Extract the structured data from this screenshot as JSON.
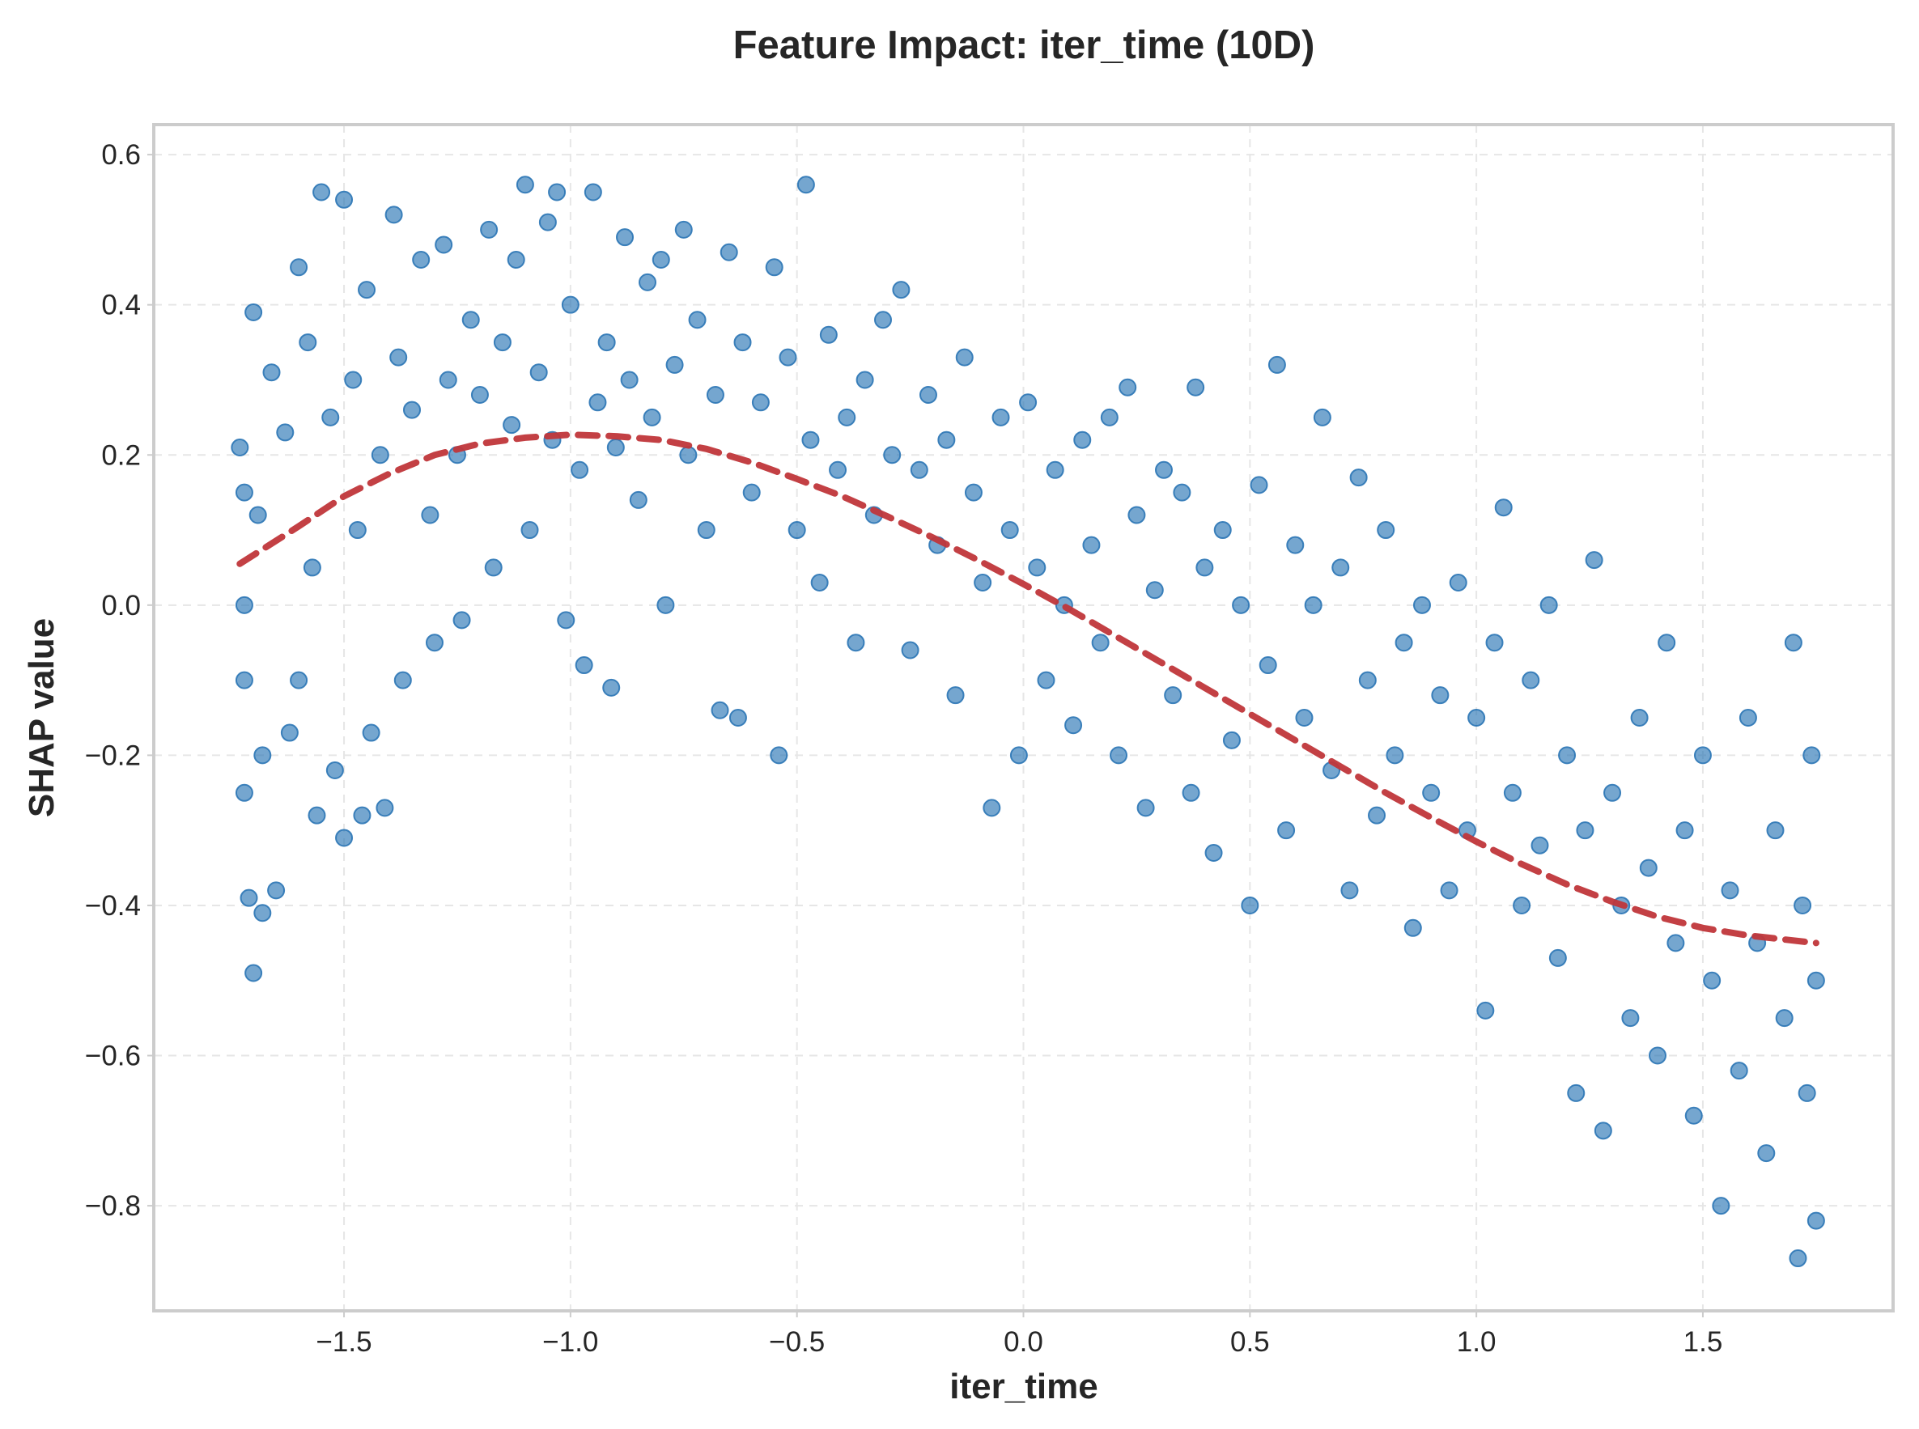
{
  "chart_data": {
    "type": "scatter",
    "title": "Feature Impact: iter_time (10D)",
    "xlabel": "iter_time",
    "ylabel": "SHAP value",
    "xlim": [
      -1.92,
      1.92
    ],
    "ylim": [
      -0.94,
      0.64
    ],
    "xticks": [
      -1.5,
      -1.0,
      -0.5,
      0.0,
      0.5,
      1.0,
      1.5
    ],
    "xtick_labels": [
      "−1.5",
      "−1.0",
      "−0.5",
      "0.0",
      "0.5",
      "1.0",
      "1.5"
    ],
    "yticks": [
      0.6,
      0.4,
      0.2,
      0.0,
      -0.2,
      -0.4,
      -0.6,
      -0.8
    ],
    "ytick_labels": [
      "0.6",
      "0.4",
      "0.2",
      "0.0",
      "−0.2",
      "−0.4",
      "−0.6",
      "−0.8"
    ],
    "grid": true,
    "series": [
      {
        "kind": "scatter",
        "color": "#2b76b5",
        "points": [
          [
            -1.73,
            0.21
          ],
          [
            -1.72,
            0.15
          ],
          [
            -1.72,
            0.0
          ],
          [
            -1.72,
            -0.1
          ],
          [
            -1.72,
            -0.25
          ],
          [
            -1.71,
            -0.39
          ],
          [
            -1.7,
            0.39
          ],
          [
            -1.7,
            -0.49
          ],
          [
            -1.69,
            0.12
          ],
          [
            -1.68,
            -0.2
          ],
          [
            -1.68,
            -0.41
          ],
          [
            -1.66,
            0.31
          ],
          [
            -1.65,
            -0.38
          ],
          [
            -1.63,
            0.23
          ],
          [
            -1.62,
            -0.17
          ],
          [
            -1.6,
            0.45
          ],
          [
            -1.6,
            -0.1
          ],
          [
            -1.58,
            0.35
          ],
          [
            -1.57,
            0.05
          ],
          [
            -1.56,
            -0.28
          ],
          [
            -1.55,
            0.55
          ],
          [
            -1.53,
            0.25
          ],
          [
            -1.52,
            -0.22
          ],
          [
            -1.5,
            0.54
          ],
          [
            -1.5,
            -0.31
          ],
          [
            -1.48,
            0.3
          ],
          [
            -1.47,
            0.1
          ],
          [
            -1.46,
            -0.28
          ],
          [
            -1.45,
            0.42
          ],
          [
            -1.44,
            -0.17
          ],
          [
            -1.42,
            0.2
          ],
          [
            -1.41,
            -0.27
          ],
          [
            -1.39,
            0.52
          ],
          [
            -1.38,
            0.33
          ],
          [
            -1.37,
            -0.1
          ],
          [
            -1.35,
            0.26
          ],
          [
            -1.33,
            0.46
          ],
          [
            -1.31,
            0.12
          ],
          [
            -1.3,
            -0.05
          ],
          [
            -1.28,
            0.48
          ],
          [
            -1.27,
            0.3
          ],
          [
            -1.25,
            0.2
          ],
          [
            -1.24,
            -0.02
          ],
          [
            -1.22,
            0.38
          ],
          [
            -1.2,
            0.28
          ],
          [
            -1.18,
            0.5
          ],
          [
            -1.17,
            0.05
          ],
          [
            -1.15,
            0.35
          ],
          [
            -1.13,
            0.24
          ],
          [
            -1.12,
            0.46
          ],
          [
            -1.1,
            0.56
          ],
          [
            -1.09,
            0.1
          ],
          [
            -1.07,
            0.31
          ],
          [
            -1.05,
            0.51
          ],
          [
            -1.04,
            0.22
          ],
          [
            -1.03,
            0.55
          ],
          [
            -1.01,
            -0.02
          ],
          [
            -1.0,
            0.4
          ],
          [
            -0.98,
            0.18
          ],
          [
            -0.97,
            -0.08
          ],
          [
            -0.95,
            0.55
          ],
          [
            -0.94,
            0.27
          ],
          [
            -0.92,
            0.35
          ],
          [
            -0.91,
            -0.11
          ],
          [
            -0.9,
            0.21
          ],
          [
            -0.88,
            0.49
          ],
          [
            -0.87,
            0.3
          ],
          [
            -0.85,
            0.14
          ],
          [
            -0.83,
            0.43
          ],
          [
            -0.82,
            0.25
          ],
          [
            -0.8,
            0.46
          ],
          [
            -0.79,
            0.0
          ],
          [
            -0.77,
            0.32
          ],
          [
            -0.75,
            0.5
          ],
          [
            -0.74,
            0.2
          ],
          [
            -0.72,
            0.38
          ],
          [
            -0.7,
            0.1
          ],
          [
            -0.68,
            0.28
          ],
          [
            -0.67,
            -0.14
          ],
          [
            -0.65,
            0.47
          ],
          [
            -0.63,
            -0.15
          ],
          [
            -0.62,
            0.35
          ],
          [
            -0.6,
            0.15
          ],
          [
            -0.58,
            0.27
          ],
          [
            -0.55,
            0.45
          ],
          [
            -0.54,
            -0.2
          ],
          [
            -0.52,
            0.33
          ],
          [
            -0.5,
            0.1
          ],
          [
            -0.48,
            0.56
          ],
          [
            -0.47,
            0.22
          ],
          [
            -0.45,
            0.03
          ],
          [
            -0.43,
            0.36
          ],
          [
            -0.41,
            0.18
          ],
          [
            -0.39,
            0.25
          ],
          [
            -0.37,
            -0.05
          ],
          [
            -0.35,
            0.3
          ],
          [
            -0.33,
            0.12
          ],
          [
            -0.31,
            0.38
          ],
          [
            -0.29,
            0.2
          ],
          [
            -0.27,
            0.42
          ],
          [
            -0.25,
            -0.06
          ],
          [
            -0.23,
            0.18
          ],
          [
            -0.21,
            0.28
          ],
          [
            -0.19,
            0.08
          ],
          [
            -0.17,
            0.22
          ],
          [
            -0.15,
            -0.12
          ],
          [
            -0.13,
            0.33
          ],
          [
            -0.11,
            0.15
          ],
          [
            -0.09,
            0.03
          ],
          [
            -0.07,
            -0.27
          ],
          [
            -0.05,
            0.25
          ],
          [
            -0.03,
            0.1
          ],
          [
            -0.01,
            -0.2
          ],
          [
            0.01,
            0.27
          ],
          [
            0.03,
            0.05
          ],
          [
            0.05,
            -0.1
          ],
          [
            0.07,
            0.18
          ],
          [
            0.09,
            0.0
          ],
          [
            0.11,
            -0.16
          ],
          [
            0.13,
            0.22
          ],
          [
            0.15,
            0.08
          ],
          [
            0.17,
            -0.05
          ],
          [
            0.19,
            0.25
          ],
          [
            0.21,
            -0.2
          ],
          [
            0.23,
            0.29
          ],
          [
            0.25,
            0.12
          ],
          [
            0.27,
            -0.27
          ],
          [
            0.29,
            0.02
          ],
          [
            0.31,
            0.18
          ],
          [
            0.33,
            -0.12
          ],
          [
            0.35,
            0.15
          ],
          [
            0.37,
            -0.25
          ],
          [
            0.38,
            0.29
          ],
          [
            0.4,
            0.05
          ],
          [
            0.42,
            -0.33
          ],
          [
            0.44,
            0.1
          ],
          [
            0.46,
            -0.18
          ],
          [
            0.48,
            0.0
          ],
          [
            0.5,
            -0.4
          ],
          [
            0.52,
            0.16
          ],
          [
            0.54,
            -0.08
          ],
          [
            0.56,
            0.32
          ],
          [
            0.58,
            -0.3
          ],
          [
            0.6,
            0.08
          ],
          [
            0.62,
            -0.15
          ],
          [
            0.64,
            0.0
          ],
          [
            0.66,
            0.25
          ],
          [
            0.68,
            -0.22
          ],
          [
            0.7,
            0.05
          ],
          [
            0.72,
            -0.38
          ],
          [
            0.74,
            0.17
          ],
          [
            0.76,
            -0.1
          ],
          [
            0.78,
            -0.28
          ],
          [
            0.8,
            0.1
          ],
          [
            0.82,
            -0.2
          ],
          [
            0.84,
            -0.05
          ],
          [
            0.86,
            -0.43
          ],
          [
            0.88,
            0.0
          ],
          [
            0.9,
            -0.25
          ],
          [
            0.92,
            -0.12
          ],
          [
            0.94,
            -0.38
          ],
          [
            0.96,
            0.03
          ],
          [
            0.98,
            -0.3
          ],
          [
            1.0,
            -0.15
          ],
          [
            1.02,
            -0.54
          ],
          [
            1.04,
            -0.05
          ],
          [
            1.06,
            0.13
          ],
          [
            1.08,
            -0.25
          ],
          [
            1.1,
            -0.4
          ],
          [
            1.12,
            -0.1
          ],
          [
            1.14,
            -0.32
          ],
          [
            1.16,
            0.0
          ],
          [
            1.18,
            -0.47
          ],
          [
            1.2,
            -0.2
          ],
          [
            1.22,
            -0.65
          ],
          [
            1.24,
            -0.3
          ],
          [
            1.26,
            0.06
          ],
          [
            1.28,
            -0.7
          ],
          [
            1.3,
            -0.25
          ],
          [
            1.32,
            -0.4
          ],
          [
            1.34,
            -0.55
          ],
          [
            1.36,
            -0.15
          ],
          [
            1.38,
            -0.35
          ],
          [
            1.4,
            -0.6
          ],
          [
            1.42,
            -0.05
          ],
          [
            1.44,
            -0.45
          ],
          [
            1.46,
            -0.3
          ],
          [
            1.48,
            -0.68
          ],
          [
            1.5,
            -0.2
          ],
          [
            1.52,
            -0.5
          ],
          [
            1.54,
            -0.8
          ],
          [
            1.56,
            -0.38
          ],
          [
            1.58,
            -0.62
          ],
          [
            1.6,
            -0.15
          ],
          [
            1.62,
            -0.45
          ],
          [
            1.64,
            -0.73
          ],
          [
            1.66,
            -0.3
          ],
          [
            1.68,
            -0.55
          ],
          [
            1.7,
            -0.05
          ],
          [
            1.71,
            -0.87
          ],
          [
            1.72,
            -0.4
          ],
          [
            1.73,
            -0.65
          ],
          [
            1.74,
            -0.2
          ],
          [
            1.75,
            -0.82
          ],
          [
            1.75,
            -0.5
          ]
        ]
      },
      {
        "kind": "line",
        "style": "dashed",
        "color": "#c0363a",
        "points": [
          [
            -1.73,
            0.055
          ],
          [
            -1.6,
            0.105
          ],
          [
            -1.5,
            0.145
          ],
          [
            -1.4,
            0.175
          ],
          [
            -1.3,
            0.2
          ],
          [
            -1.2,
            0.215
          ],
          [
            -1.1,
            0.223
          ],
          [
            -1.0,
            0.227
          ],
          [
            -0.9,
            0.225
          ],
          [
            -0.8,
            0.22
          ],
          [
            -0.7,
            0.208
          ],
          [
            -0.6,
            0.19
          ],
          [
            -0.5,
            0.168
          ],
          [
            -0.4,
            0.145
          ],
          [
            -0.3,
            0.118
          ],
          [
            -0.2,
            0.09
          ],
          [
            -0.1,
            0.06
          ],
          [
            0.0,
            0.028
          ],
          [
            0.1,
            -0.005
          ],
          [
            0.2,
            -0.04
          ],
          [
            0.3,
            -0.075
          ],
          [
            0.4,
            -0.11
          ],
          [
            0.5,
            -0.145
          ],
          [
            0.6,
            -0.18
          ],
          [
            0.7,
            -0.215
          ],
          [
            0.8,
            -0.25
          ],
          [
            0.9,
            -0.283
          ],
          [
            1.0,
            -0.315
          ],
          [
            1.1,
            -0.345
          ],
          [
            1.2,
            -0.372
          ],
          [
            1.3,
            -0.395
          ],
          [
            1.4,
            -0.415
          ],
          [
            1.5,
            -0.43
          ],
          [
            1.6,
            -0.44
          ],
          [
            1.75,
            -0.45
          ]
        ]
      }
    ]
  }
}
